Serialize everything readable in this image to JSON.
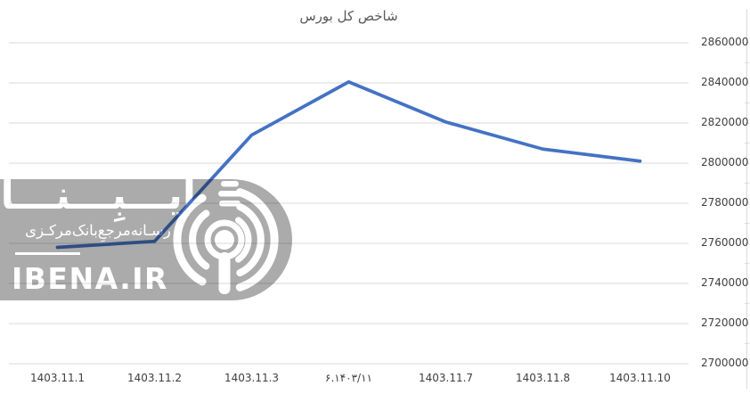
{
  "chart_data": {
    "type": "line",
    "title": "شاخص کل بورس",
    "categories": [
      "1403.11.1",
      "1403.11.2",
      "1403.11.3",
      "۶.۱۴۰۳/۱۱",
      "1403.11.7",
      "1403.11.8",
      "1403.11.10"
    ],
    "values": [
      2758000,
      2761000,
      2814000,
      2840500,
      2820500,
      2807000,
      2801000
    ],
    "ylim": [
      2700000,
      2860000
    ],
    "y_tick_step": 20000,
    "y_tick_labels": [
      "2700000",
      "2720000",
      "2740000",
      "2760000",
      "2780000",
      "2800000",
      "2820000",
      "2840000",
      "2860000"
    ],
    "value_axis_side": "right",
    "grid": "horizontal-major",
    "legend": "none",
    "line_color": "#4472C4"
  },
  "colors": {
    "line": "#4472C4",
    "gridline": "#D9D9D9",
    "axis_line": "#D9D9D9",
    "title_text": "#595959",
    "tick_text": "#3F3F3F",
    "watermark_gray": "#ABABAB",
    "watermark_text": "#FFFFFF"
  },
  "watermark": {
    "brand_fa": "ایـــبِـــنـــا",
    "tagline_fa": "رسـانه‌مرجعِ‌بانک‌مرکـزی",
    "domain_text": "IBENA.IR",
    "logo_icon": "ibena-radial-logo"
  }
}
